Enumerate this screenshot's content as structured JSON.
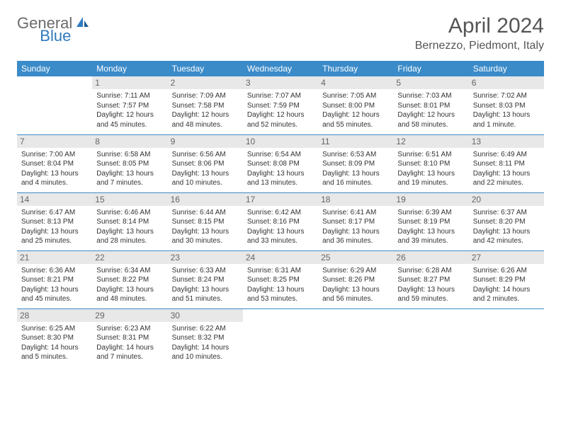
{
  "logo": {
    "general": "General",
    "blue": "Blue"
  },
  "title": "April 2024",
  "location": "Bernezzo, Piedmont, Italy",
  "colors": {
    "header_bg": "#3b8bc9",
    "header_text": "#ffffff",
    "daynum_bg": "#e8e8e8",
    "text": "#333333",
    "logo_gray": "#6b6b6b",
    "logo_blue": "#2f7abf"
  },
  "weekdays": [
    "Sunday",
    "Monday",
    "Tuesday",
    "Wednesday",
    "Thursday",
    "Friday",
    "Saturday"
  ],
  "weeks": [
    [
      null,
      {
        "n": "1",
        "sr": "Sunrise: 7:11 AM",
        "ss": "Sunset: 7:57 PM",
        "d1": "Daylight: 12 hours",
        "d2": "and 45 minutes."
      },
      {
        "n": "2",
        "sr": "Sunrise: 7:09 AM",
        "ss": "Sunset: 7:58 PM",
        "d1": "Daylight: 12 hours",
        "d2": "and 48 minutes."
      },
      {
        "n": "3",
        "sr": "Sunrise: 7:07 AM",
        "ss": "Sunset: 7:59 PM",
        "d1": "Daylight: 12 hours",
        "d2": "and 52 minutes."
      },
      {
        "n": "4",
        "sr": "Sunrise: 7:05 AM",
        "ss": "Sunset: 8:00 PM",
        "d1": "Daylight: 12 hours",
        "d2": "and 55 minutes."
      },
      {
        "n": "5",
        "sr": "Sunrise: 7:03 AM",
        "ss": "Sunset: 8:01 PM",
        "d1": "Daylight: 12 hours",
        "d2": "and 58 minutes."
      },
      {
        "n": "6",
        "sr": "Sunrise: 7:02 AM",
        "ss": "Sunset: 8:03 PM",
        "d1": "Daylight: 13 hours",
        "d2": "and 1 minute."
      }
    ],
    [
      {
        "n": "7",
        "sr": "Sunrise: 7:00 AM",
        "ss": "Sunset: 8:04 PM",
        "d1": "Daylight: 13 hours",
        "d2": "and 4 minutes."
      },
      {
        "n": "8",
        "sr": "Sunrise: 6:58 AM",
        "ss": "Sunset: 8:05 PM",
        "d1": "Daylight: 13 hours",
        "d2": "and 7 minutes."
      },
      {
        "n": "9",
        "sr": "Sunrise: 6:56 AM",
        "ss": "Sunset: 8:06 PM",
        "d1": "Daylight: 13 hours",
        "d2": "and 10 minutes."
      },
      {
        "n": "10",
        "sr": "Sunrise: 6:54 AM",
        "ss": "Sunset: 8:08 PM",
        "d1": "Daylight: 13 hours",
        "d2": "and 13 minutes."
      },
      {
        "n": "11",
        "sr": "Sunrise: 6:53 AM",
        "ss": "Sunset: 8:09 PM",
        "d1": "Daylight: 13 hours",
        "d2": "and 16 minutes."
      },
      {
        "n": "12",
        "sr": "Sunrise: 6:51 AM",
        "ss": "Sunset: 8:10 PM",
        "d1": "Daylight: 13 hours",
        "d2": "and 19 minutes."
      },
      {
        "n": "13",
        "sr": "Sunrise: 6:49 AM",
        "ss": "Sunset: 8:11 PM",
        "d1": "Daylight: 13 hours",
        "d2": "and 22 minutes."
      }
    ],
    [
      {
        "n": "14",
        "sr": "Sunrise: 6:47 AM",
        "ss": "Sunset: 8:13 PM",
        "d1": "Daylight: 13 hours",
        "d2": "and 25 minutes."
      },
      {
        "n": "15",
        "sr": "Sunrise: 6:46 AM",
        "ss": "Sunset: 8:14 PM",
        "d1": "Daylight: 13 hours",
        "d2": "and 28 minutes."
      },
      {
        "n": "16",
        "sr": "Sunrise: 6:44 AM",
        "ss": "Sunset: 8:15 PM",
        "d1": "Daylight: 13 hours",
        "d2": "and 30 minutes."
      },
      {
        "n": "17",
        "sr": "Sunrise: 6:42 AM",
        "ss": "Sunset: 8:16 PM",
        "d1": "Daylight: 13 hours",
        "d2": "and 33 minutes."
      },
      {
        "n": "18",
        "sr": "Sunrise: 6:41 AM",
        "ss": "Sunset: 8:17 PM",
        "d1": "Daylight: 13 hours",
        "d2": "and 36 minutes."
      },
      {
        "n": "19",
        "sr": "Sunrise: 6:39 AM",
        "ss": "Sunset: 8:19 PM",
        "d1": "Daylight: 13 hours",
        "d2": "and 39 minutes."
      },
      {
        "n": "20",
        "sr": "Sunrise: 6:37 AM",
        "ss": "Sunset: 8:20 PM",
        "d1": "Daylight: 13 hours",
        "d2": "and 42 minutes."
      }
    ],
    [
      {
        "n": "21",
        "sr": "Sunrise: 6:36 AM",
        "ss": "Sunset: 8:21 PM",
        "d1": "Daylight: 13 hours",
        "d2": "and 45 minutes."
      },
      {
        "n": "22",
        "sr": "Sunrise: 6:34 AM",
        "ss": "Sunset: 8:22 PM",
        "d1": "Daylight: 13 hours",
        "d2": "and 48 minutes."
      },
      {
        "n": "23",
        "sr": "Sunrise: 6:33 AM",
        "ss": "Sunset: 8:24 PM",
        "d1": "Daylight: 13 hours",
        "d2": "and 51 minutes."
      },
      {
        "n": "24",
        "sr": "Sunrise: 6:31 AM",
        "ss": "Sunset: 8:25 PM",
        "d1": "Daylight: 13 hours",
        "d2": "and 53 minutes."
      },
      {
        "n": "25",
        "sr": "Sunrise: 6:29 AM",
        "ss": "Sunset: 8:26 PM",
        "d1": "Daylight: 13 hours",
        "d2": "and 56 minutes."
      },
      {
        "n": "26",
        "sr": "Sunrise: 6:28 AM",
        "ss": "Sunset: 8:27 PM",
        "d1": "Daylight: 13 hours",
        "d2": "and 59 minutes."
      },
      {
        "n": "27",
        "sr": "Sunrise: 6:26 AM",
        "ss": "Sunset: 8:29 PM",
        "d1": "Daylight: 14 hours",
        "d2": "and 2 minutes."
      }
    ],
    [
      {
        "n": "28",
        "sr": "Sunrise: 6:25 AM",
        "ss": "Sunset: 8:30 PM",
        "d1": "Daylight: 14 hours",
        "d2": "and 5 minutes."
      },
      {
        "n": "29",
        "sr": "Sunrise: 6:23 AM",
        "ss": "Sunset: 8:31 PM",
        "d1": "Daylight: 14 hours",
        "d2": "and 7 minutes."
      },
      {
        "n": "30",
        "sr": "Sunrise: 6:22 AM",
        "ss": "Sunset: 8:32 PM",
        "d1": "Daylight: 14 hours",
        "d2": "and 10 minutes."
      },
      null,
      null,
      null,
      null
    ]
  ]
}
